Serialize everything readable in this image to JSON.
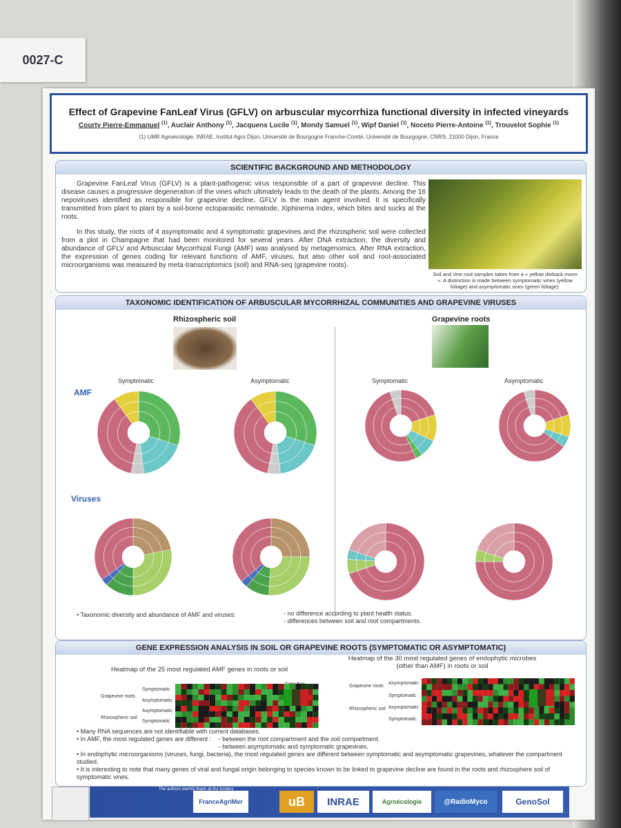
{
  "tag": "0027-C",
  "header": {
    "title": "Effect of Grapevine FanLeaf Virus (GFLV) on arbuscular mycorrhiza functional diversity in infected vineyards",
    "authors": [
      {
        "name": "Courty Pierre-Emmanuel",
        "aff": "(1)"
      },
      {
        "name": "Auclair Anthony",
        "aff": "(1)"
      },
      {
        "name": "Jacquens Lucile",
        "aff": "(1)"
      },
      {
        "name": "Mondy Samuel",
        "aff": "(1)"
      },
      {
        "name": "Wipf Daniel",
        "aff": "(1)"
      },
      {
        "name": "Noceto Pierre-Antoine",
        "aff": "(1)"
      },
      {
        "name": "Trouvelot Sophie",
        "aff": "(1)"
      }
    ],
    "affiliation": "(1) UMR Agroécologie, INRAE, Institut Agro Dijon, Université de Bourgogne Franche-Comté, Université de Bourgogne, CNRS, 21000 Dijon, France"
  },
  "background": {
    "heading": "SCIENTIFIC BACKGROUND AND METHODOLOGY",
    "paragraphs": [
      "Grapevine FanLeaf Virus (GFLV) is a plant-pathogenic virus responsible of a part of grapevine decline. This disease causes a progressive degeneration of the vines which ultimately leads to the death of the plants. Among the 16 nepoviruses identified as responsible for grapevine decline, GFLV is the main agent involved. It is specifically transmitted from plant to plant by a soil-borne ectoparasitic nematode, Xiphinema index, which bites and sucks at the roots.",
      "In this study, the roots of 4 asymptomatic and 4 symptomatic grapevines and the rhizospheric soil were collected from a plot in Champagne that had been monitored for several years. After DNA extraction, the diversity and abundance of GFLV and Arbuscular Mycorrhizal Fungi (AMF) was analysed by metagenomics. After RNA extraction, the expression of genes coding for relevant functions of AMF, viruses, but also other soil and root-associated microorganisms was measured by meta-transcriptomics (soil) and RNA-seq (grapevine roots)."
    ],
    "caption": "Soil and vine root samples taken from a « yellow dieback moon ». A distinction is made between symptomatic vines (yellow foliage) and asymptomatic ones (green foliage)."
  },
  "taxonomy": {
    "heading": "TAXONOMIC IDENTIFICATION OF ARBUSCULAR MYCORRHIZAL COMMUNITIES AND GRAPEVINE VIRUSES",
    "soil": "Rhizospheric soil",
    "roots": "Grapevine roots",
    "symptomatic": "Symptomatic",
    "asymptomatic": "Asymptomatic",
    "amf": "AMF",
    "viruses": "Viruses",
    "summary": "Taxonomic diversity and abundance of AMF and viruses:",
    "findings": [
      "- no difference according to plant health status.",
      "- differences between soil and root compartments."
    ]
  },
  "gene": {
    "heading": "GENE EXPRESSION ANALYSIS IN SOIL OR GRAPEVINE ROOTS (SYMPTOMATIC OR ASYMPTOMATIC)",
    "heatmap_amf": "Heatmap of the 25 most regulated AMF genes in roots or soil",
    "heatmap_microbes": "Heatmap of the 30 most regulated genes of endophytic microbes (other than AMF) in roots or soil",
    "roots": "Grapevine roots",
    "soil": "Rhizospheric soil",
    "symptomatic": "Symptomatic",
    "asymptomatic": "Asymptomatic",
    "color_key": "Color Key",
    "bullets": [
      "Many RNA sequences are not identifiable with current databases.",
      "In AMF, the most regulated genes are different :",
      "In endophytic microorganisms (viruses, fungi, bacteria), the most regulated genes are different between symptomatic and asymptomatic grapevines, whatever the compartment studied.",
      "It is interesting to note that many genes of viral and fungal origin belonging to species known to be linked to grapevine decline are found in the roots and rhizosphere soil of symptomatic vines."
    ],
    "sub_bullets": [
      "- between the root compartment and the soil compartment.",
      "- between asymptomatic and symptomatic grapevines."
    ]
  },
  "footer": {
    "thanks": "The authors warmly thank all the funders",
    "logos": [
      "FranceAgriMer",
      "uB",
      "INRAE",
      "Agroécologie",
      "@RadioMyco",
      "GenoSol"
    ]
  }
}
